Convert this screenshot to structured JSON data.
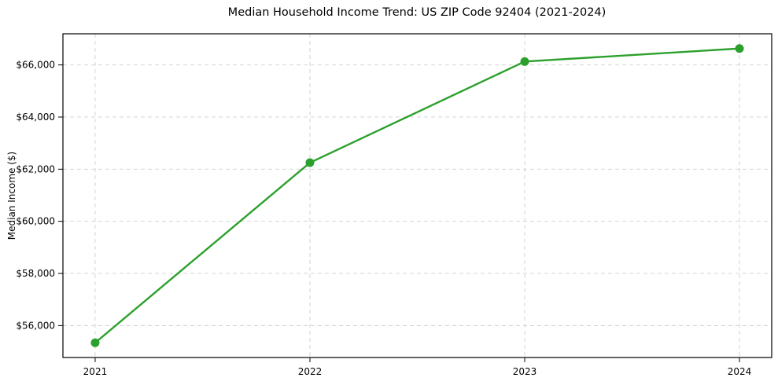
{
  "figure": {
    "background": "#ffffff"
  },
  "chart_data": {
    "type": "line",
    "title": "Median Household Income Trend: US ZIP Code 92404 (2021-2024)",
    "xlabel": "",
    "ylabel": "Median Income ($)",
    "x": [
      2021,
      2022,
      2023,
      2024
    ],
    "x_tick_labels": [
      "2021",
      "2022",
      "2023",
      "2024"
    ],
    "values": [
      55340,
      62250,
      66130,
      66630
    ],
    "y_ticks": [
      56000,
      58000,
      60000,
      62000,
      64000,
      66000
    ],
    "y_tick_labels": [
      "$56,000",
      "$58,000",
      "$60,000",
      "$62,000",
      "$64,000",
      "$66,000"
    ],
    "ylim": [
      54775,
      67195
    ],
    "x_margin_fraction": 0.05,
    "grid": true,
    "grid_style": "dashed",
    "legend": false,
    "colors": {
      "line": "#2ca02c",
      "marker": "#2ca02c",
      "grid": "#cfcfcf",
      "axis": "#000000",
      "text": "#000000",
      "background": "#ffffff"
    }
  }
}
